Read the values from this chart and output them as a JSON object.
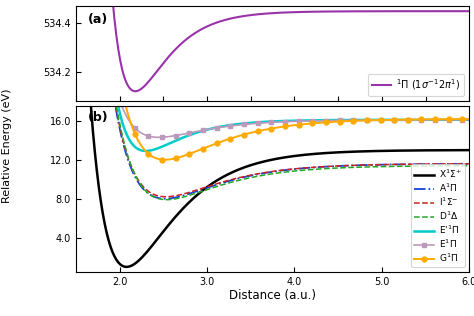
{
  "title_a": "(a)",
  "title_b": "(b)",
  "xlabel": "Distance (a.u.)",
  "ylabel": "Relative Energy (eV)",
  "xlim": [
    1.5,
    6.0
  ],
  "ylim_a": [
    534.08,
    534.47
  ],
  "ylim_b": [
    0.5,
    17.5
  ],
  "yticks_a": [
    534.4,
    534.2
  ],
  "yticks_b": [
    4.0,
    8.0,
    12.0,
    16.0
  ],
  "xticks_b": [
    2.0,
    3.0,
    4.0,
    5.0,
    6.0
  ],
  "curve_a_color": "#9933aa",
  "curve_a_label": "$^{1}\\Pi$ (1$\\sigma^{-1}$2$\\pi^{1}$)",
  "curves_b": [
    {
      "label": "X$^{1}\\Sigma^{+}$",
      "color": "#000000",
      "style": "-",
      "lw": 1.8,
      "marker": "None"
    },
    {
      "label": "A$^{1}\\Pi$",
      "color": "#1144dd",
      "style": "-.",
      "lw": 1.3,
      "marker": "None"
    },
    {
      "label": "I$^{1}\\Sigma^{-}$",
      "color": "#cc2222",
      "style": "--",
      "lw": 1.1,
      "marker": "None"
    },
    {
      "label": "D$^{1}\\Delta$",
      "color": "#22aa22",
      "style": "--",
      "lw": 1.1,
      "marker": "None"
    },
    {
      "label": "E'$^{1}\\Pi$",
      "color": "#00cccc",
      "style": "-",
      "lw": 1.8,
      "marker": "None"
    },
    {
      "label": "E$^{1}\\Pi$",
      "color": "#bb99bb",
      "style": "-",
      "lw": 1.2,
      "marker": "s"
    },
    {
      "label": "G$^{1}\\Pi$",
      "color": "#ffaa00",
      "style": "-",
      "lw": 1.4,
      "marker": "o"
    }
  ],
  "background_color": "#ffffff"
}
